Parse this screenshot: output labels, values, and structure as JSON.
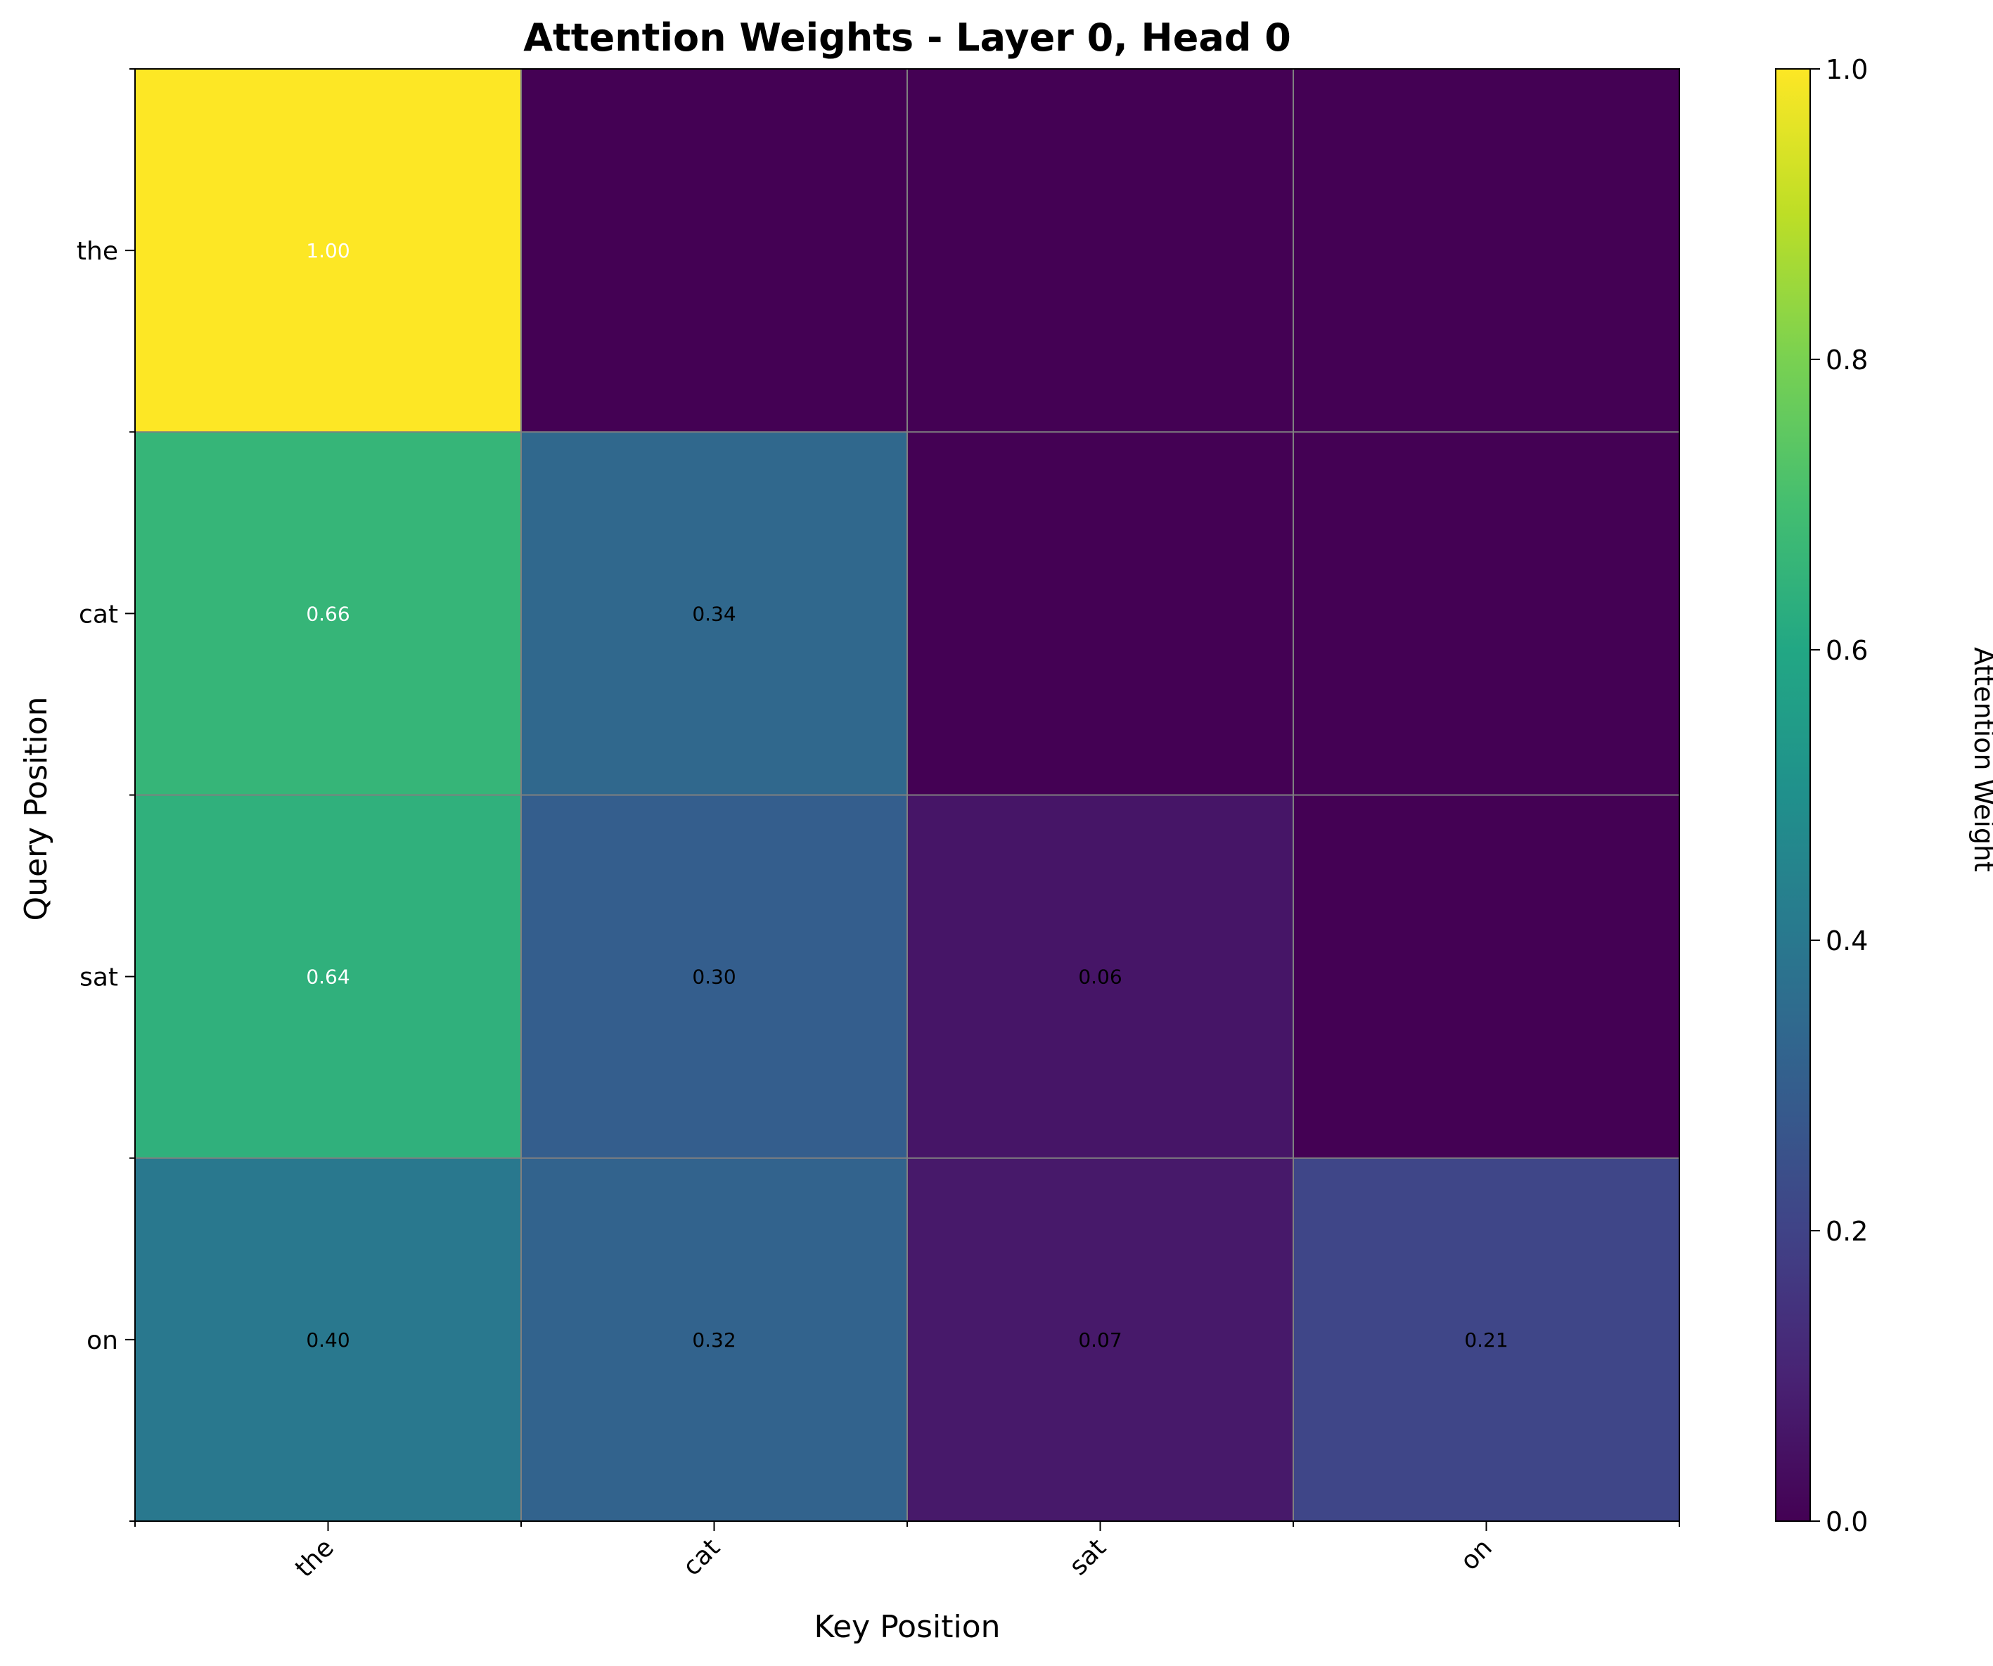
{
  "chart_data": {
    "type": "heatmap",
    "title": "Attention Weights - Layer 0, Head 0",
    "xlabel": "Key Position",
    "ylabel": "Query Position",
    "x_categories": [
      "the",
      "cat",
      "sat",
      "on"
    ],
    "y_categories": [
      "the",
      "cat",
      "sat",
      "on"
    ],
    "values": [
      [
        1.0,
        0.0,
        0.0,
        0.0
      ],
      [
        0.66,
        0.34,
        0.0,
        0.0
      ],
      [
        0.64,
        0.3,
        0.06,
        0.0
      ],
      [
        0.4,
        0.32,
        0.07,
        0.21
      ]
    ],
    "cell_labels": [
      [
        "1.00",
        "",
        "",
        ""
      ],
      [
        "0.66",
        "0.34",
        "",
        ""
      ],
      [
        "0.64",
        "0.30",
        "0.06",
        ""
      ],
      [
        "0.40",
        "0.32",
        "0.07",
        "0.21"
      ]
    ],
    "colormap": "viridis",
    "colorbar": {
      "label": "Attention Weight",
      "range": [
        0,
        1
      ],
      "ticks": [
        "0.0",
        "0.2",
        "0.4",
        "0.6",
        "0.8",
        "1.0"
      ]
    },
    "grid": true,
    "grid_color": "#808080",
    "light_text_color": "#ffffff",
    "dark_text_color": "#000000"
  }
}
